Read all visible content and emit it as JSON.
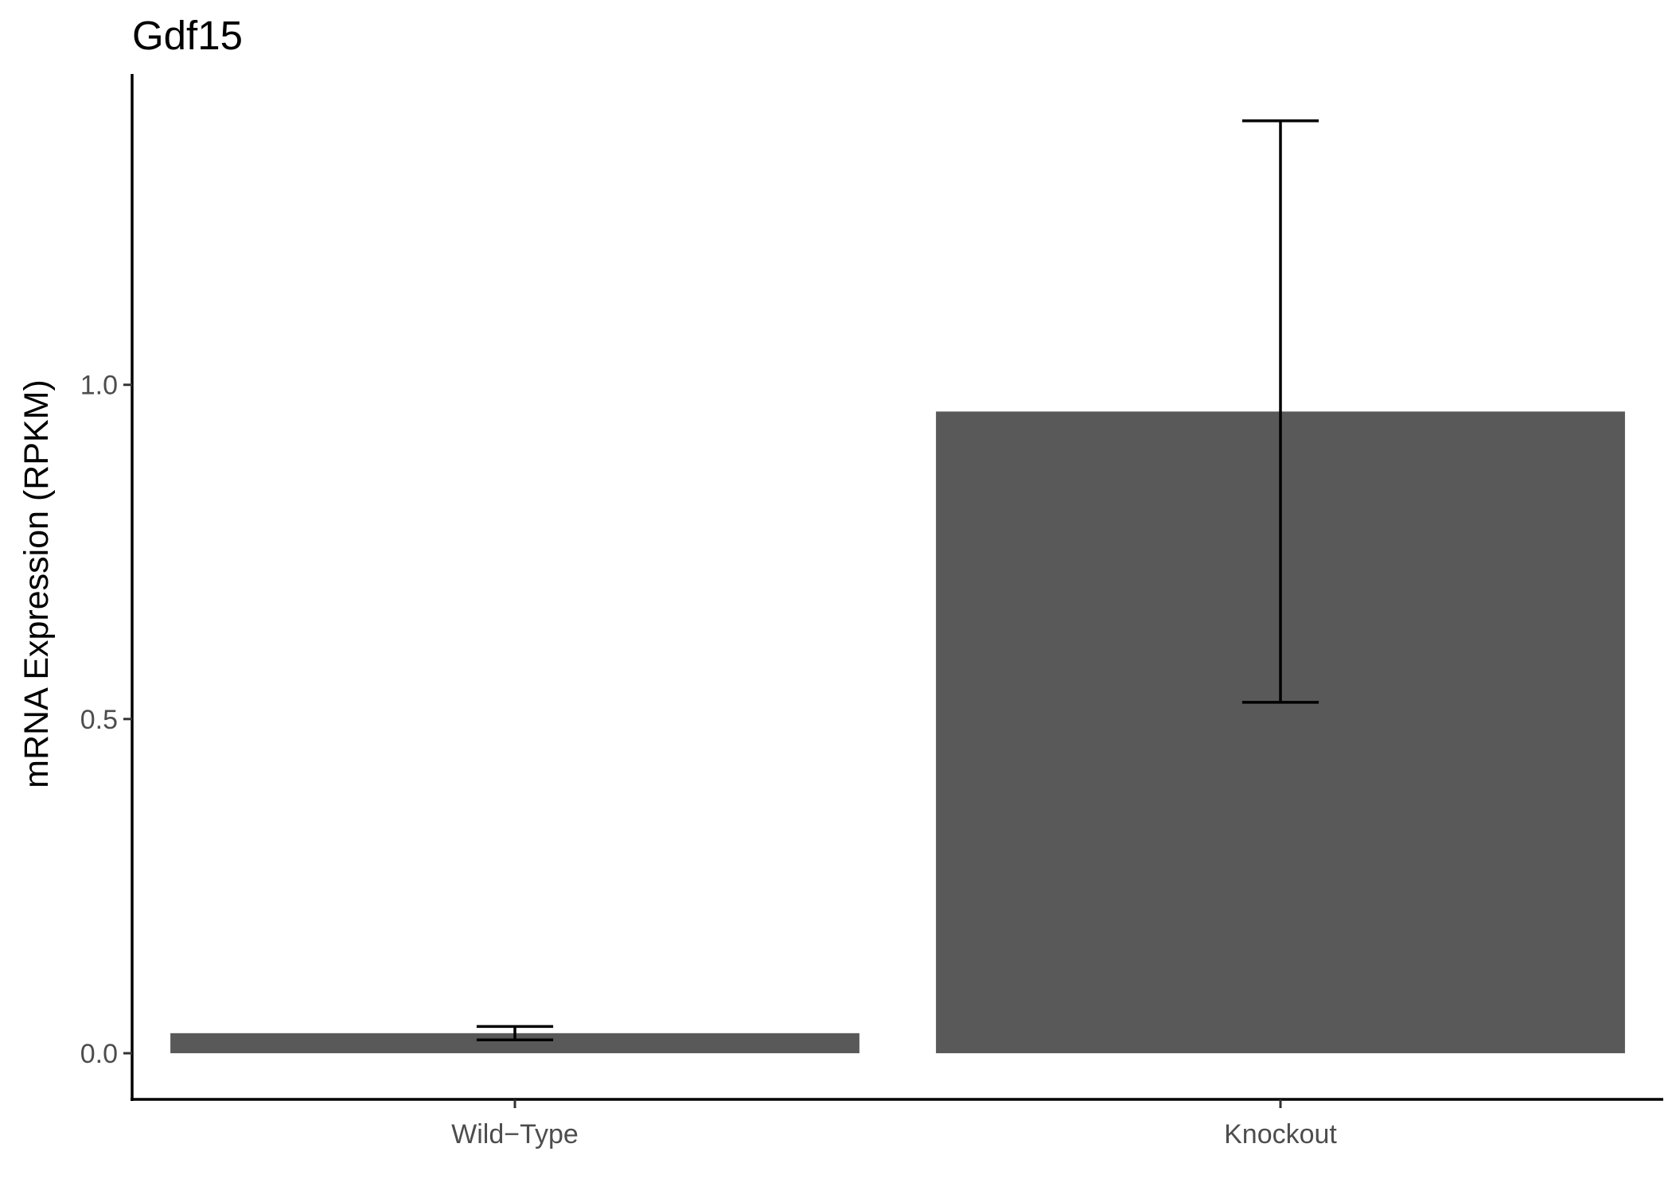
{
  "chart_data": {
    "type": "bar",
    "title": "Gdf15",
    "xlabel": "",
    "ylabel": "mRNA Expression (RPKM)",
    "categories": [
      "Wild−Type",
      "Knockout"
    ],
    "values": [
      0.03,
      0.96
    ],
    "error_bars": [
      {
        "low": 0.02,
        "high": 0.04
      },
      {
        "low": 0.525,
        "high": 1.395
      }
    ],
    "yticks": [
      0.0,
      0.5,
      1.0
    ],
    "ytick_labels": [
      "0.0",
      "0.5",
      "1.0"
    ],
    "ylim": [
      -0.069,
      1.465
    ],
    "bar_color": "#595959",
    "grid": false,
    "legend": "none"
  }
}
